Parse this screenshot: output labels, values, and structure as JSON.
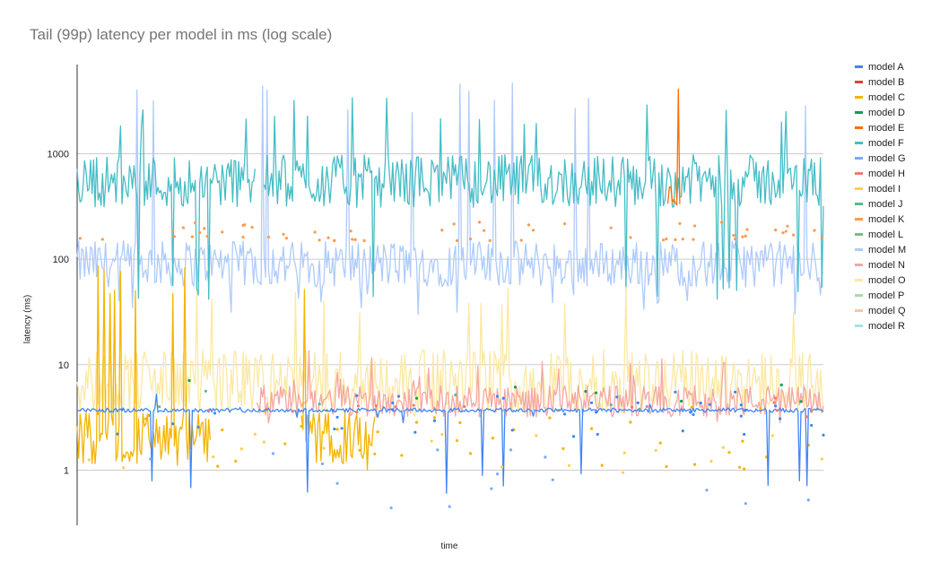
{
  "chart_data": {
    "type": "line",
    "title": "Tail (99p) latency per model in ms (log scale)",
    "xlabel": "time",
    "ylabel": "latency (ms)",
    "yscale": "log",
    "ylim": [
      0.3,
      7000
    ],
    "ytick_values": [
      1,
      10,
      100,
      1000
    ],
    "ytick_labels": [
      "1",
      "10",
      "100",
      "1000"
    ],
    "grid": true,
    "legend_position": "right",
    "series": [
      {
        "name": "model A",
        "color": "#4285f4",
        "style": "line+points",
        "typical": 3.7,
        "range": [
          0.6,
          5.5
        ]
      },
      {
        "name": "model B",
        "color": "#db4437",
        "style": "none"
      },
      {
        "name": "model C",
        "color": "#f4b400",
        "style": "line+points",
        "typical": 2.0,
        "range": [
          1.0,
          90
        ]
      },
      {
        "name": "model D",
        "color": "#0f9d58",
        "style": "points",
        "typical": 5.5,
        "range": [
          2.5,
          8
        ]
      },
      {
        "name": "model E",
        "color": "#ff6d00",
        "style": "line",
        "typical": 400,
        "range": [
          300,
          7000
        ]
      },
      {
        "name": "model F",
        "color": "#46bdc6",
        "style": "line",
        "typical": 550,
        "range": [
          40,
          3500
        ]
      },
      {
        "name": "model G",
        "color": "#7baaf7",
        "style": "points",
        "typical": 0.8,
        "range": [
          0.3,
          40
        ]
      },
      {
        "name": "model H",
        "color": "#f07b72",
        "style": "points",
        "typical": 4,
        "range": [
          2.5,
          8
        ]
      },
      {
        "name": "model I",
        "color": "#fcd04f",
        "style": "points",
        "typical": 1.5,
        "range": [
          0.9,
          3
        ]
      },
      {
        "name": "model J",
        "color": "#57bb8a",
        "style": "points",
        "typical": 4.5,
        "range": [
          3,
          8
        ]
      },
      {
        "name": "model K",
        "color": "#ff994d",
        "style": "points",
        "typical": 180,
        "range": [
          150,
          500
        ]
      },
      {
        "name": "model L",
        "color": "#71c287",
        "style": "none"
      },
      {
        "name": "model M",
        "color": "#aecbfa",
        "style": "line",
        "typical": 90,
        "range": [
          30,
          4800
        ]
      },
      {
        "name": "model N",
        "color": "#f4a7a1",
        "style": "line",
        "typical": 4.5,
        "range": [
          2.5,
          14
        ]
      },
      {
        "name": "model O",
        "color": "#fce8a3",
        "style": "line",
        "typical": 7,
        "range": [
          3,
          60
        ]
      },
      {
        "name": "model P",
        "color": "#a8dab5",
        "style": "none"
      },
      {
        "name": "model Q",
        "color": "#f8c6a4",
        "style": "none"
      },
      {
        "name": "model R",
        "color": "#a2e3e8",
        "style": "none"
      }
    ]
  }
}
